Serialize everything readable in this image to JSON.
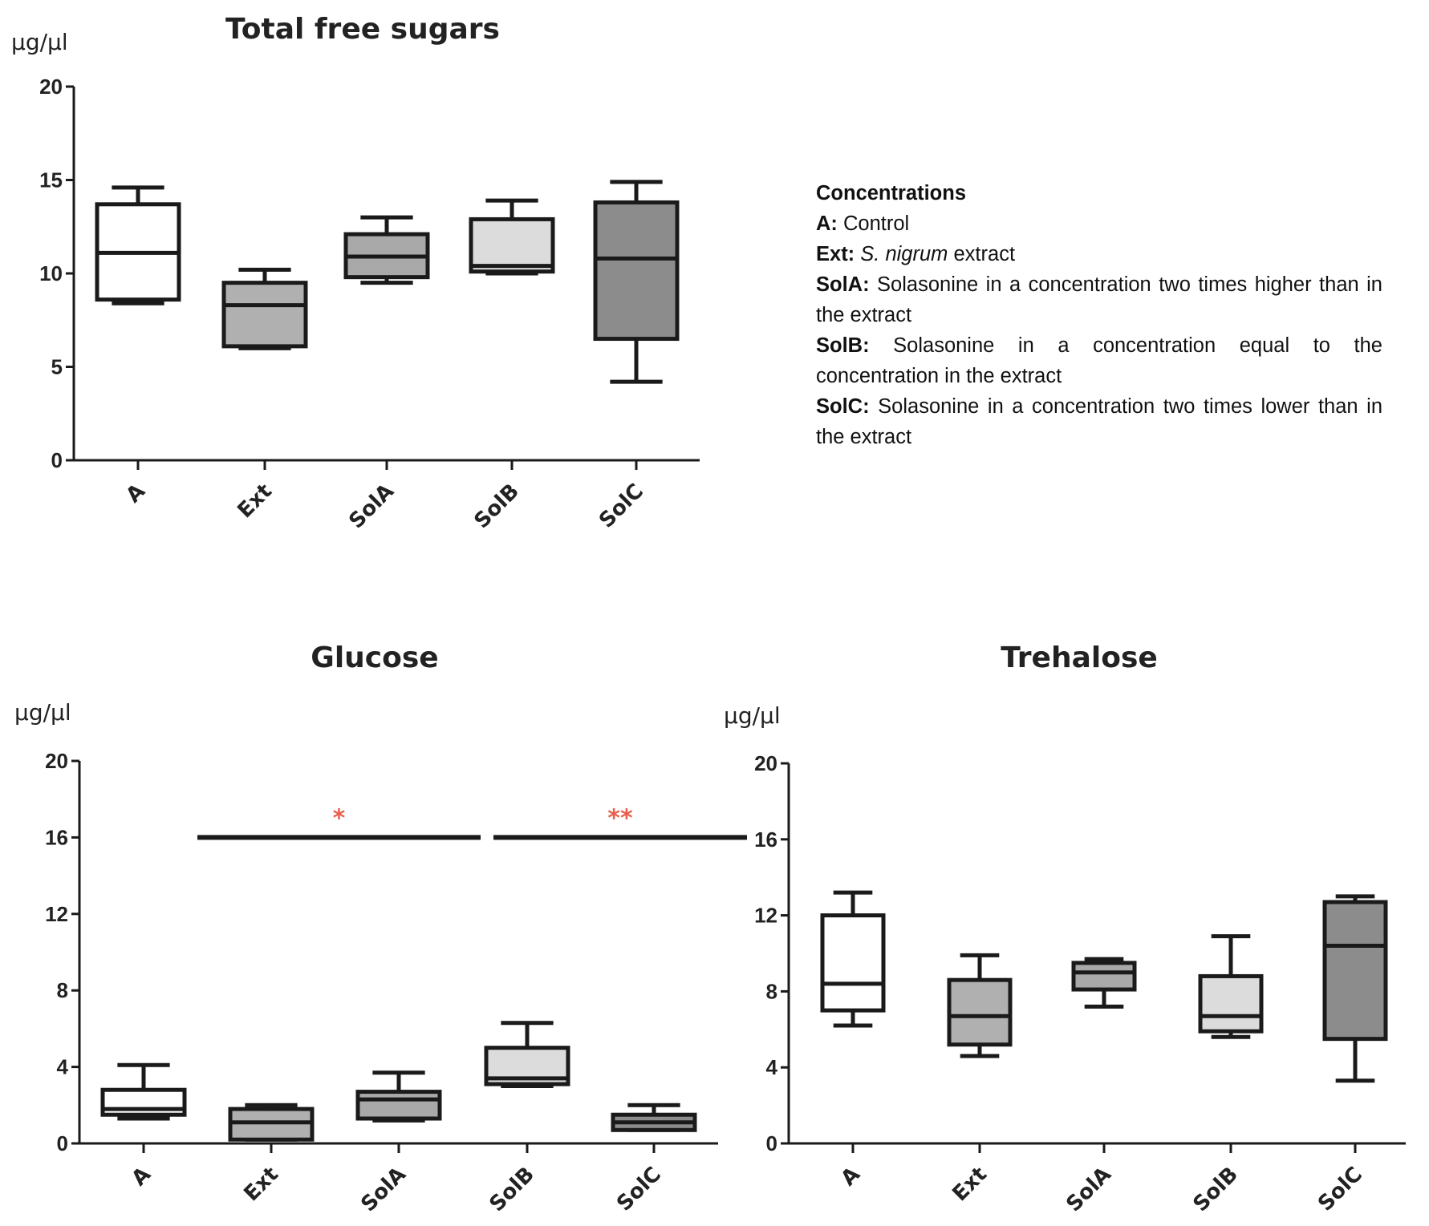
{
  "chart_data": [
    {
      "type": "box",
      "title": "Total free sugars",
      "ylabel": "µg/µl",
      "ylim": [
        0,
        20
      ],
      "yticks": [
        "0",
        "5",
        "10",
        "15",
        "20"
      ],
      "categories": [
        "A",
        "Ext",
        "SolA",
        "SolB",
        "SolC"
      ],
      "colors": [
        "#ffffff",
        "#b0b0b0",
        "#a9a9a9",
        "#dcdcdc",
        "#8c8c8c"
      ],
      "boxes": [
        {
          "min": 8.4,
          "q1": 8.6,
          "median": 11.1,
          "q3": 13.7,
          "max": 14.6
        },
        {
          "min": 6.0,
          "q1": 6.1,
          "median": 8.3,
          "q3": 9.5,
          "max": 10.2
        },
        {
          "min": 9.5,
          "q1": 9.8,
          "median": 10.9,
          "q3": 12.1,
          "max": 13.0
        },
        {
          "min": 10.0,
          "q1": 10.1,
          "median": 10.4,
          "q3": 12.9,
          "max": 13.9
        },
        {
          "min": 4.2,
          "q1": 6.5,
          "median": 10.8,
          "q3": 13.8,
          "max": 14.9
        }
      ],
      "significance": []
    },
    {
      "type": "box",
      "title": "Glucose",
      "ylabel": "µg/µl",
      "ylim": [
        0,
        20
      ],
      "yticks": [
        "0",
        "4",
        "8",
        "12",
        "16",
        "20"
      ],
      "categories": [
        "A",
        "Ext",
        "SolA",
        "SolB",
        "SolC"
      ],
      "colors": [
        "#ffffff",
        "#b0b0b0",
        "#a9a9a9",
        "#dcdcdc",
        "#8c8c8c"
      ],
      "boxes": [
        {
          "min": 1.3,
          "q1": 1.5,
          "median": 1.8,
          "q3": 2.8,
          "max": 4.1
        },
        {
          "min": 0.2,
          "q1": 0.2,
          "median": 1.1,
          "q3": 1.8,
          "max": 2.0
        },
        {
          "min": 1.2,
          "q1": 1.3,
          "median": 2.3,
          "q3": 2.7,
          "max": 3.7
        },
        {
          "min": 3.0,
          "q1": 3.1,
          "median": 3.4,
          "q3": 5.0,
          "max": 6.3
        },
        {
          "min": 0.7,
          "q1": 0.7,
          "median": 1.1,
          "q3": 1.5,
          "max": 2.0
        }
      ],
      "significance": [
        {
          "from": 1,
          "to": 3,
          "label": "*",
          "y": 16
        },
        {
          "from": 3,
          "to": 4,
          "label": "**",
          "y": 16
        }
      ]
    },
    {
      "type": "box",
      "title": "Trehalose",
      "ylabel": "µg/µl",
      "ylim": [
        0,
        20
      ],
      "yticks": [
        "0",
        "4",
        "8",
        "12",
        "16",
        "20"
      ],
      "categories": [
        "A",
        "Ext",
        "SolA",
        "SolB",
        "SolC"
      ],
      "colors": [
        "#ffffff",
        "#b0b0b0",
        "#a9a9a9",
        "#dcdcdc",
        "#8c8c8c"
      ],
      "boxes": [
        {
          "min": 6.2,
          "q1": 7.0,
          "median": 8.4,
          "q3": 12.0,
          "max": 13.2
        },
        {
          "min": 4.6,
          "q1": 5.2,
          "median": 6.7,
          "q3": 8.6,
          "max": 9.9
        },
        {
          "min": 7.2,
          "q1": 8.1,
          "median": 9.0,
          "q3": 9.5,
          "max": 9.7
        },
        {
          "min": 5.6,
          "q1": 5.9,
          "median": 6.7,
          "q3": 8.8,
          "max": 10.9
        },
        {
          "min": 3.3,
          "q1": 5.5,
          "median": 10.4,
          "q3": 12.7,
          "max": 13.0
        }
      ],
      "significance": []
    }
  ],
  "legend": {
    "heading": "Concentrations",
    "entries": [
      {
        "key": "A:",
        "text": "Control"
      },
      {
        "key": "Ext:",
        "text_italic": "S. nigrum",
        "text": "extract"
      },
      {
        "key": "SolA:",
        "text": "Solasonine in a concentration two times higher than in the extract"
      },
      {
        "key": "SolB:",
        "text": "Solasonine in a concentration  equal to the concentration in the extract"
      },
      {
        "key": "SolC:",
        "text": "Solasonine in a concentration two times lower than in the extract"
      }
    ]
  }
}
